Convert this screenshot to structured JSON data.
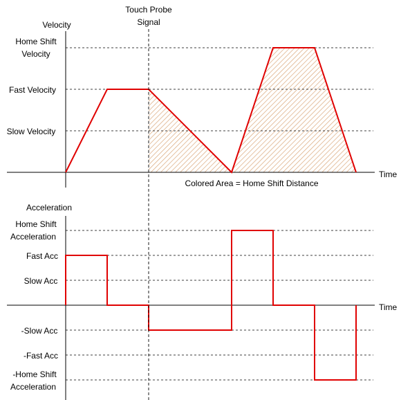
{
  "colors": {
    "curve": "#e00000",
    "hatch": "#d9a679",
    "axis": "#000000",
    "dash": "#000000"
  },
  "probe_label": {
    "line1": "Touch Probe",
    "line2": "Signal"
  },
  "velocity": {
    "title": "Velocity",
    "x_label": "Time",
    "levels": {
      "home_shift_line1": "Home Shift",
      "home_shift_line2": "Velocity",
      "fast": "Fast Velocity",
      "slow": "Slow Velocity"
    },
    "area_note": "Colored Area = Home Shift Distance"
  },
  "acceleration": {
    "title": "Acceleration",
    "x_label": "Time",
    "levels": {
      "home_shift_line1": "Home Shift",
      "home_shift_line2": "Acceleration",
      "fast": "Fast Acc",
      "slow": "Slow Acc",
      "neg_slow": "-Slow Acc",
      "neg_fast": "-Fast Acc",
      "neg_home_shift_line1": "-Home Shift",
      "neg_home_shift_line2": "Acceleration"
    }
  }
}
